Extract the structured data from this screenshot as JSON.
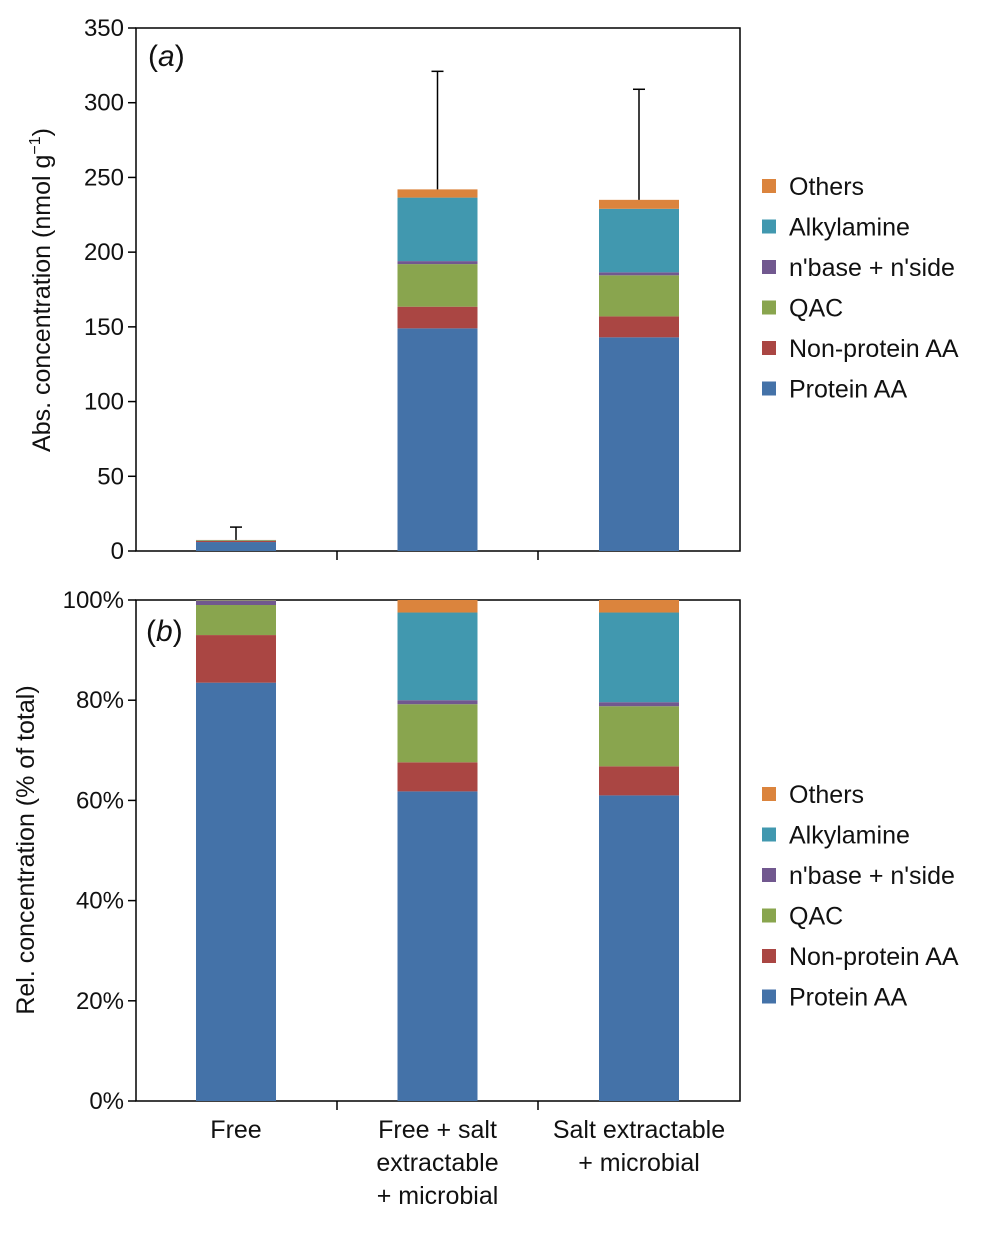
{
  "chart_data": [
    {
      "type": "bar",
      "stacked": true,
      "panel_label": "a",
      "ylabel": "Abs. concentration (nmol g",
      "ylabel_sup": "−1",
      "ylabel_close": ")",
      "ylim": [
        0,
        350
      ],
      "yticks": [
        0,
        50,
        100,
        150,
        200,
        250,
        300,
        350
      ],
      "categories": [
        "Free",
        "Free + salt extractable + microbial",
        "Salt extractable + microbial"
      ],
      "error_bars": [
        16,
        321,
        309
      ],
      "series": [
        {
          "name": "Protein AA",
          "color": "#4472a8",
          "values": [
            6,
            149,
            143
          ]
        },
        {
          "name": "Non-protein AA",
          "color": "#aa4643",
          "values": [
            0.7,
            14.5,
            14
          ]
        },
        {
          "name": "QAC",
          "color": "#89a54e",
          "values": [
            0.5,
            28.5,
            27.5
          ]
        },
        {
          "name": "n'base + n'side",
          "color": "#71588f",
          "values": [
            0.1,
            2,
            2
          ]
        },
        {
          "name": "Alkylamine",
          "color": "#4198af",
          "values": [
            0.05,
            42.5,
            42.5
          ]
        },
        {
          "name": "Others",
          "color": "#db843d",
          "values": [
            0.05,
            5.5,
            6
          ]
        }
      ],
      "legend": [
        "Others",
        "Alkylamine",
        "n'base + n'side",
        "QAC",
        "Non-protein AA",
        "Protein AA"
      ],
      "legend_position": "right"
    },
    {
      "type": "bar",
      "stacked": true,
      "panel_label": "b",
      "ylabel": "Rel. concentration (% of total)",
      "ylim": [
        0,
        100
      ],
      "yticks": [
        "0%",
        "20%",
        "40%",
        "60%",
        "80%",
        "100%"
      ],
      "categories": [
        "Free",
        "Free + salt extractable + microbial",
        "Salt extractable + microbial"
      ],
      "category_lines": [
        [
          "Free"
        ],
        [
          "Free + salt",
          "extractable",
          "+ microbial"
        ],
        [
          "Salt extractable",
          "+ microbial"
        ]
      ],
      "series": [
        {
          "name": "Protein AA",
          "color": "#4472a8",
          "values": [
            83.5,
            61.8,
            61
          ]
        },
        {
          "name": "Non-protein AA",
          "color": "#aa4643",
          "values": [
            9.5,
            5.8,
            5.8
          ]
        },
        {
          "name": "QAC",
          "color": "#89a54e",
          "values": [
            6,
            11.6,
            12
          ]
        },
        {
          "name": "n'base + n'side",
          "color": "#71588f",
          "values": [
            0.8,
            0.8,
            0.8
          ]
        },
        {
          "name": "Alkylamine",
          "color": "#4198af",
          "values": [
            0.1,
            17.5,
            17.9
          ]
        },
        {
          "name": "Others",
          "color": "#db843d",
          "values": [
            0.1,
            2.5,
            2.5
          ]
        }
      ],
      "legend": [
        "Others",
        "Alkylamine",
        "n'base + n'side",
        "QAC",
        "Non-protein AA",
        "Protein AA"
      ],
      "legend_position": "right"
    }
  ]
}
